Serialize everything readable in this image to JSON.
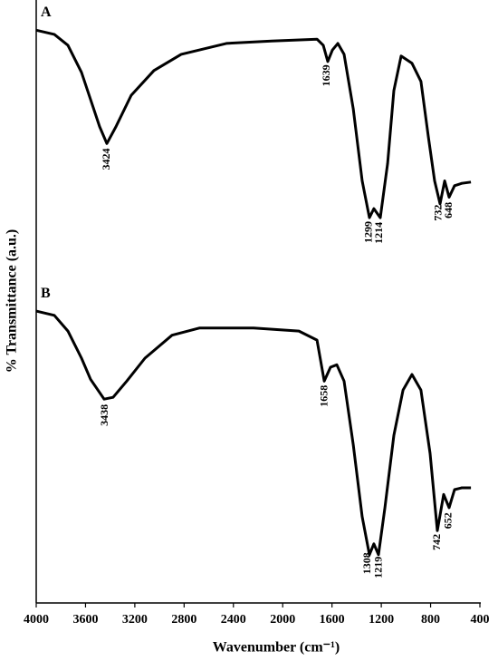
{
  "chart_data": {
    "type": "line",
    "xlabel": "Wavenumber (cm⁻¹)",
    "ylabel": "% Transmittance (a.u.)",
    "xlim": [
      4000,
      400
    ],
    "xticks": [
      4000,
      3600,
      3200,
      2800,
      2400,
      2000,
      1600,
      1200,
      800,
      400
    ],
    "ylim": [
      0,
      100
    ],
    "series": [
      {
        "name": "A",
        "color": "#000000",
        "x": [
          4000,
          3853,
          3743,
          3633,
          3559,
          3486,
          3427,
          3353,
          3229,
          3045,
          2824,
          2457,
          2090,
          1722,
          1671,
          1634,
          1597,
          1553,
          1502,
          1428,
          1355,
          1296,
          1260,
          1208,
          1149,
          1098,
          1039,
          951,
          878,
          819,
          767,
          723,
          686,
          650,
          606,
          547,
          473
        ],
        "values": [
          95.0,
          94.3,
          92.5,
          88.0,
          83.5,
          79.0,
          76.2,
          79.0,
          84.2,
          88.3,
          91.0,
          92.8,
          93.2,
          93.5,
          92.5,
          89.8,
          91.7,
          92.8,
          91.0,
          82.0,
          70.0,
          63.9,
          65.4,
          63.9,
          72.9,
          85.0,
          90.7,
          89.5,
          86.5,
          77.4,
          70.0,
          66.2,
          70.0,
          67.3,
          69.2,
          69.6,
          69.8
        ],
        "peaks": [
          3424,
          1639,
          1299,
          1214,
          732,
          648
        ]
      },
      {
        "name": "B",
        "color": "#000000",
        "x": [
          4000,
          3853,
          3743,
          3633,
          3559,
          3449,
          3376,
          3265,
          3118,
          2898,
          2677,
          2237,
          1869,
          1722,
          1663,
          1612,
          1561,
          1502,
          1428,
          1355,
          1296,
          1260,
          1223,
          1171,
          1098,
          1024,
          951,
          878,
          804,
          745,
          694,
          650,
          606,
          547,
          473
        ],
        "values": [
          48.4,
          47.7,
          45.1,
          40.6,
          37.1,
          33.8,
          34.1,
          36.8,
          40.6,
          44.4,
          45.6,
          45.6,
          45.1,
          43.6,
          36.8,
          39.1,
          39.5,
          36.8,
          26.3,
          14.3,
          8.0,
          9.8,
          8.0,
          15.8,
          27.8,
          35.3,
          37.9,
          35.3,
          24.8,
          12.0,
          18.0,
          15.8,
          18.8,
          19.1,
          19.1
        ],
        "peaks": [
          3438,
          1658,
          1308,
          1219,
          742,
          652
        ]
      }
    ]
  }
}
